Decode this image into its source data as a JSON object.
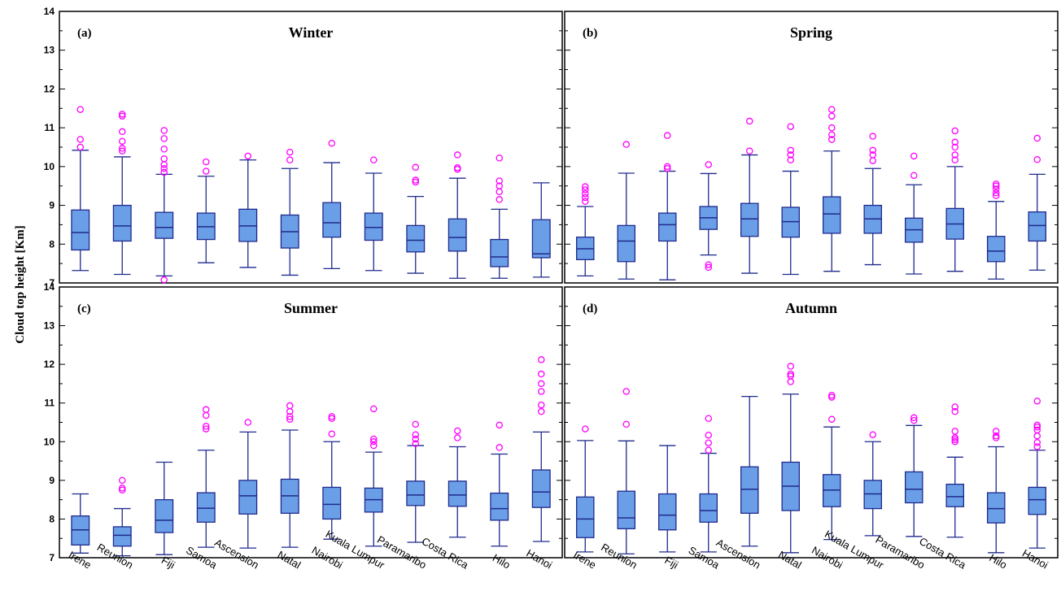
{
  "figure": {
    "ylabel": "Cloud top height [Km]"
  },
  "colors": {
    "box_fill": "#6a9fe8",
    "box_stroke": "#1f2a8c",
    "outlier": "#ff00ff",
    "frame": "#000000"
  },
  "chart_data": [
    {
      "type": "box",
      "panel_label": "(a)",
      "title": "Winter",
      "ylim": [
        7,
        14
      ],
      "yticks": [
        7,
        8,
        9,
        10,
        11,
        12,
        13,
        14
      ],
      "categories": [
        "Irene",
        "Reunion",
        "Fiji",
        "Samoa",
        "Ascension",
        "Natal",
        "Nairobi",
        "Kuala Lumpur",
        "Paramaribo",
        "Costa Rica",
        "Hilo",
        "Hanoi"
      ],
      "boxes": [
        {
          "whislo": 7.32,
          "q1": 7.85,
          "med": 8.3,
          "q3": 8.88,
          "whishi": 10.42,
          "fliers": [
            10.5,
            10.7,
            11.47
          ]
        },
        {
          "whislo": 7.22,
          "q1": 8.08,
          "med": 8.47,
          "q3": 9.0,
          "whishi": 10.25,
          "fliers": [
            10.4,
            10.47,
            10.65,
            10.9,
            11.3,
            11.35
          ]
        },
        {
          "whislo": 7.18,
          "q1": 8.15,
          "med": 8.43,
          "q3": 8.82,
          "whishi": 9.8,
          "fliers": [
            7.08,
            9.85,
            9.95,
            10.05,
            10.2,
            10.45,
            10.72,
            10.93
          ]
        },
        {
          "whislo": 7.52,
          "q1": 8.12,
          "med": 8.45,
          "q3": 8.8,
          "whishi": 9.75,
          "fliers": [
            9.88,
            10.12
          ]
        },
        {
          "whislo": 7.4,
          "q1": 8.07,
          "med": 8.47,
          "q3": 8.9,
          "whishi": 10.17,
          "fliers": [
            10.27
          ]
        },
        {
          "whislo": 7.2,
          "q1": 7.9,
          "med": 8.32,
          "q3": 8.75,
          "whishi": 9.95,
          "fliers": [
            10.17,
            10.37
          ]
        },
        {
          "whislo": 7.37,
          "q1": 8.18,
          "med": 8.55,
          "q3": 9.07,
          "whishi": 10.1,
          "fliers": [
            10.6
          ]
        },
        {
          "whislo": 7.32,
          "q1": 8.1,
          "med": 8.43,
          "q3": 8.8,
          "whishi": 9.83,
          "fliers": [
            10.17
          ]
        },
        {
          "whislo": 7.25,
          "q1": 7.8,
          "med": 8.1,
          "q3": 8.48,
          "whishi": 9.23,
          "fliers": [
            9.6,
            9.65,
            9.98
          ]
        },
        {
          "whislo": 7.12,
          "q1": 7.82,
          "med": 8.17,
          "q3": 8.65,
          "whishi": 9.7,
          "fliers": [
            9.93,
            9.97,
            10.3
          ]
        },
        {
          "whislo": 7.12,
          "q1": 7.42,
          "med": 7.67,
          "q3": 8.12,
          "whishi": 8.9,
          "fliers": [
            9.15,
            9.35,
            9.5,
            9.63,
            10.22
          ]
        },
        {
          "whislo": 7.15,
          "q1": 7.65,
          "med": 7.75,
          "q3": 8.63,
          "whishi": 9.58,
          "fliers": []
        }
      ]
    },
    {
      "type": "box",
      "panel_label": "(b)",
      "title": "Spring",
      "ylim": [
        7,
        14
      ],
      "yticks": [
        7,
        8,
        9,
        10,
        11,
        12,
        13,
        14
      ],
      "categories": [
        "Irene",
        "Reunion",
        "Fiji",
        "Samoa",
        "Ascension",
        "Natal",
        "Nairobi",
        "Kuala Lumpur",
        "Paramaribo",
        "Costa Rica",
        "Hilo",
        "Hanoi"
      ],
      "boxes": [
        {
          "whislo": 7.18,
          "q1": 7.6,
          "med": 7.88,
          "q3": 8.18,
          "whishi": 8.97,
          "fliers": [
            9.1,
            9.2,
            9.3,
            9.4,
            9.48
          ]
        },
        {
          "whislo": 7.1,
          "q1": 7.55,
          "med": 8.08,
          "q3": 8.48,
          "whishi": 9.83,
          "fliers": [
            10.57
          ]
        },
        {
          "whislo": 7.08,
          "q1": 8.08,
          "med": 8.5,
          "q3": 8.8,
          "whishi": 9.88,
          "fliers": [
            9.95,
            10.0,
            10.8
          ]
        },
        {
          "whislo": 7.72,
          "q1": 8.38,
          "med": 8.68,
          "q3": 8.97,
          "whishi": 9.82,
          "fliers": [
            7.4,
            7.47,
            10.05
          ]
        },
        {
          "whislo": 7.25,
          "q1": 8.2,
          "med": 8.65,
          "q3": 9.05,
          "whishi": 10.3,
          "fliers": [
            10.4,
            11.17
          ]
        },
        {
          "whislo": 7.22,
          "q1": 8.18,
          "med": 8.58,
          "q3": 8.95,
          "whishi": 9.88,
          "fliers": [
            10.17,
            10.3,
            10.42,
            11.03
          ]
        },
        {
          "whislo": 7.3,
          "q1": 8.28,
          "med": 8.78,
          "q3": 9.22,
          "whishi": 10.4,
          "fliers": [
            10.7,
            10.82,
            11.0,
            11.3,
            11.47
          ]
        },
        {
          "whislo": 7.47,
          "q1": 8.28,
          "med": 8.65,
          "q3": 9.0,
          "whishi": 9.95,
          "fliers": [
            10.15,
            10.3,
            10.42,
            10.78
          ]
        },
        {
          "whislo": 7.23,
          "q1": 8.05,
          "med": 8.37,
          "q3": 8.67,
          "whishi": 9.53,
          "fliers": [
            9.77,
            10.27
          ]
        },
        {
          "whislo": 7.3,
          "q1": 8.13,
          "med": 8.52,
          "q3": 8.92,
          "whishi": 10.0,
          "fliers": [
            10.17,
            10.3,
            10.5,
            10.63,
            10.92
          ]
        },
        {
          "whislo": 7.1,
          "q1": 7.55,
          "med": 7.82,
          "q3": 8.2,
          "whishi": 9.1,
          "fliers": [
            9.25,
            9.32,
            9.42,
            9.5,
            9.55
          ]
        },
        {
          "whislo": 7.33,
          "q1": 8.08,
          "med": 8.48,
          "q3": 8.83,
          "whishi": 9.8,
          "fliers": [
            10.18,
            10.73
          ]
        }
      ]
    },
    {
      "type": "box",
      "panel_label": "(c)",
      "title": "Summer",
      "ylim": [
        7,
        14
      ],
      "yticks": [
        7,
        8,
        9,
        10,
        11,
        12,
        13,
        14
      ],
      "categories": [
        "Irene",
        "Reunion",
        "Fiji",
        "Samoa",
        "Ascension",
        "Natal",
        "Nairobi",
        "Kuala Lumpur",
        "Paramaribo",
        "Costa Rica",
        "Hilo",
        "Hanoi"
      ],
      "boxes": [
        {
          "whislo": 7.12,
          "q1": 7.33,
          "med": 7.72,
          "q3": 8.08,
          "whishi": 8.65,
          "fliers": []
        },
        {
          "whislo": 7.05,
          "q1": 7.3,
          "med": 7.58,
          "q3": 7.8,
          "whishi": 8.27,
          "fliers": [
            8.75,
            8.8,
            9.0
          ]
        },
        {
          "whislo": 7.08,
          "q1": 7.65,
          "med": 7.97,
          "q3": 8.5,
          "whishi": 9.47,
          "fliers": []
        },
        {
          "whislo": 7.27,
          "q1": 7.92,
          "med": 8.28,
          "q3": 8.68,
          "whishi": 9.78,
          "fliers": [
            10.33,
            10.4,
            10.68,
            10.83
          ]
        },
        {
          "whislo": 7.25,
          "q1": 8.13,
          "med": 8.6,
          "q3": 9.0,
          "whishi": 10.25,
          "fliers": [
            10.5
          ]
        },
        {
          "whislo": 7.27,
          "q1": 8.15,
          "med": 8.6,
          "q3": 9.03,
          "whishi": 10.3,
          "fliers": [
            10.58,
            10.65,
            10.78,
            10.93
          ]
        },
        {
          "whislo": 7.48,
          "q1": 8.0,
          "med": 8.38,
          "q3": 8.82,
          "whishi": 10.0,
          "fliers": [
            10.2,
            10.6,
            10.65
          ]
        },
        {
          "whislo": 7.3,
          "q1": 8.18,
          "med": 8.5,
          "q3": 8.8,
          "whishi": 9.73,
          "fliers": [
            9.9,
            10.0,
            10.07,
            10.85
          ]
        },
        {
          "whislo": 7.4,
          "q1": 8.35,
          "med": 8.62,
          "q3": 8.98,
          "whishi": 9.9,
          "fliers": [
            9.95,
            10.07,
            10.18,
            10.45
          ]
        },
        {
          "whislo": 7.53,
          "q1": 8.33,
          "med": 8.62,
          "q3": 8.98,
          "whishi": 9.87,
          "fliers": [
            10.1,
            10.28
          ]
        },
        {
          "whislo": 7.3,
          "q1": 7.97,
          "med": 8.27,
          "q3": 8.67,
          "whishi": 9.68,
          "fliers": [
            9.85,
            10.43
          ]
        },
        {
          "whislo": 7.42,
          "q1": 8.3,
          "med": 8.7,
          "q3": 9.27,
          "whishi": 10.25,
          "fliers": [
            10.78,
            10.95,
            11.3,
            11.5,
            11.75,
            12.12
          ]
        }
      ]
    },
    {
      "type": "box",
      "panel_label": "(d)",
      "title": "Autumn",
      "ylim": [
        7,
        14
      ],
      "yticks": [
        7,
        8,
        9,
        10,
        11,
        12,
        13,
        14
      ],
      "categories": [
        "Irene",
        "Reunion",
        "Fiji",
        "Samoa",
        "Ascension",
        "Natal",
        "Nairobi",
        "Kuala Lumpur",
        "Paramaribo",
        "Costa Rica",
        "Hilo",
        "Hanoi"
      ],
      "boxes": [
        {
          "whislo": 7.15,
          "q1": 7.52,
          "med": 8.0,
          "q3": 8.57,
          "whishi": 10.03,
          "fliers": [
            10.33
          ]
        },
        {
          "whislo": 7.1,
          "q1": 7.75,
          "med": 8.03,
          "q3": 8.72,
          "whishi": 10.02,
          "fliers": [
            10.45,
            11.3
          ]
        },
        {
          "whislo": 7.15,
          "q1": 7.72,
          "med": 8.1,
          "q3": 8.65,
          "whishi": 9.9,
          "fliers": []
        },
        {
          "whislo": 7.15,
          "q1": 7.92,
          "med": 8.22,
          "q3": 8.65,
          "whishi": 9.7,
          "fliers": [
            9.78,
            9.97,
            10.17,
            10.6
          ]
        },
        {
          "whislo": 7.3,
          "q1": 8.15,
          "med": 8.77,
          "q3": 9.35,
          "whishi": 11.17,
          "fliers": []
        },
        {
          "whislo": 7.13,
          "q1": 8.22,
          "med": 8.85,
          "q3": 9.47,
          "whishi": 11.23,
          "fliers": [
            11.55,
            11.7,
            11.75,
            11.95
          ]
        },
        {
          "whislo": 7.47,
          "q1": 8.32,
          "med": 8.75,
          "q3": 9.15,
          "whishi": 10.38,
          "fliers": [
            10.58,
            11.15,
            11.2
          ]
        },
        {
          "whislo": 7.57,
          "q1": 8.27,
          "med": 8.65,
          "q3": 9.0,
          "whishi": 10.0,
          "fliers": [
            10.18
          ]
        },
        {
          "whislo": 7.55,
          "q1": 8.42,
          "med": 8.77,
          "q3": 9.22,
          "whishi": 10.42,
          "fliers": [
            10.55,
            10.62
          ]
        },
        {
          "whislo": 7.53,
          "q1": 8.32,
          "med": 8.58,
          "q3": 8.9,
          "whishi": 9.6,
          "fliers": [
            10.0,
            10.05,
            10.1,
            10.27,
            10.78,
            10.9
          ]
        },
        {
          "whislo": 7.13,
          "q1": 7.9,
          "med": 8.27,
          "q3": 8.68,
          "whishi": 9.87,
          "fliers": [
            10.1,
            10.15,
            10.27
          ]
        },
        {
          "whislo": 7.25,
          "q1": 8.12,
          "med": 8.5,
          "q3": 8.82,
          "whishi": 9.78,
          "fliers": [
            9.87,
            9.98,
            10.15,
            10.3,
            10.38,
            10.43,
            11.05
          ]
        }
      ]
    }
  ]
}
